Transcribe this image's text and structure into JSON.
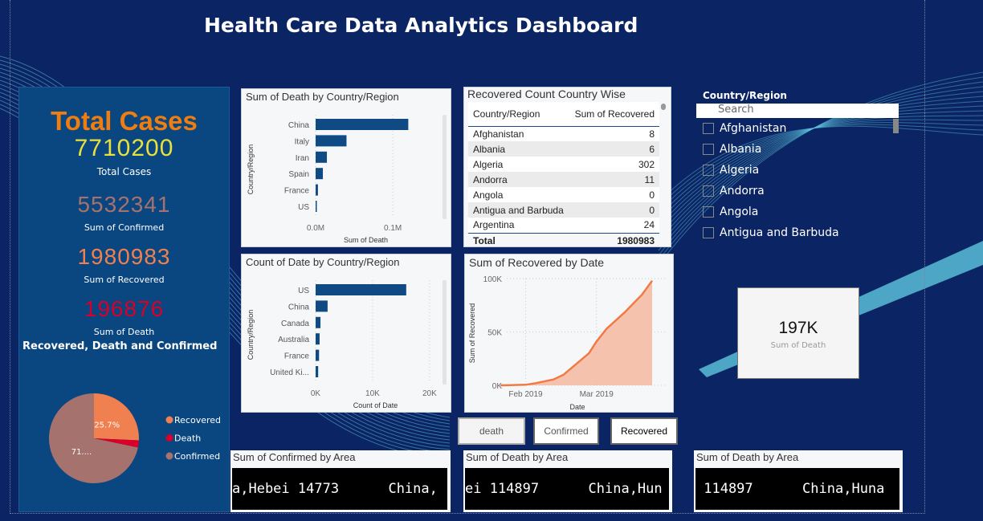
{
  "title": "Health Care Data Analytics Dashboard",
  "colors": {
    "background": "#0b2463",
    "kpi_panel": "#0a4680",
    "total_title": "#f07d10",
    "total_value": "#e8e03c",
    "confirmed": "#a6726e",
    "recovered": "#f08050",
    "death": "#d8002a",
    "bar": "#0f4a84"
  },
  "kpi": {
    "heading": "Total Cases",
    "total_value": "7710200",
    "total_label": "Total Cases",
    "confirmed_value": "5532341",
    "confirmed_label": "Sum of Confirmed",
    "recovered_value": "1980983",
    "recovered_label": "Sum of Recovered",
    "death_value": "196876",
    "death_label": "Sum of Death"
  },
  "pie": {
    "title": "Recovered, Death and Confirmed",
    "slices": [
      {
        "name": "Recovered",
        "percent": 25.7,
        "label": "25.7%",
        "color": "#f08050"
      },
      {
        "name": "Death",
        "percent": 2.6,
        "label": "",
        "color": "#d8002a"
      },
      {
        "name": "Confirmed",
        "percent": 71.7,
        "label": "71....",
        "color": "#a6726e"
      }
    ]
  },
  "chart_data": [
    {
      "type": "bar",
      "title": "Sum of Death by Country/Region",
      "xlabel": "Sum of Death",
      "ylabel": "Country/Region",
      "categories": [
        "China",
        "Italy",
        "Iran",
        "Spain",
        "France",
        "US"
      ],
      "values": [
        120000,
        40000,
        14600,
        9400,
        3000,
        1000
      ],
      "xlim": [
        0,
        130000
      ],
      "ticks": [
        {
          "v": 0,
          "label": "0.0M"
        },
        {
          "v": 100000,
          "label": "0.1M"
        }
      ]
    },
    {
      "type": "bar",
      "title": "Count of Date by Country/Region",
      "xlabel": "Count of Date",
      "ylabel": "Country/Region",
      "categories": [
        "US",
        "China",
        "Canada",
        "Australia",
        "France",
        "United Ki..."
      ],
      "values": [
        15900,
        2100,
        850,
        700,
        600,
        450
      ],
      "xlim": [
        0,
        21000
      ],
      "ticks": [
        {
          "v": 0,
          "label": "0K"
        },
        {
          "v": 10000,
          "label": "10K"
        },
        {
          "v": 20000,
          "label": "20K"
        }
      ]
    },
    {
      "type": "area",
      "title": "Sum of Recovered by Date",
      "xlabel": "Date",
      "ylabel": "Sum of Recovered",
      "x": [
        "2019-01-22",
        "2019-02-01",
        "2019-02-05",
        "2019-02-12",
        "2019-02-16",
        "2019-02-21",
        "2019-02-26",
        "2019-03-01",
        "2019-03-05",
        "2019-03-12",
        "2019-03-19",
        "2019-03-23"
      ],
      "y": [
        0,
        500,
        2000,
        5500,
        10000,
        20000,
        30000,
        41000,
        53000,
        68000,
        85000,
        98000
      ],
      "ylim": [
        0,
        100000
      ],
      "yticks": [
        {
          "v": 0,
          "label": "0K"
        },
        {
          "v": 50000,
          "label": "50K"
        },
        {
          "v": 100000,
          "label": "100K"
        }
      ],
      "xticks": [
        {
          "v": "2019-02-01",
          "label": "Feb 2019"
        },
        {
          "v": "2019-03-01",
          "label": "Mar 2019"
        }
      ]
    }
  ],
  "table": {
    "title": "Recovered Count Country Wise",
    "columns": [
      "Country/Region",
      "Sum of Recovered"
    ],
    "rows": [
      [
        "Afghanistan",
        "8"
      ],
      [
        "Albania",
        "6"
      ],
      [
        "Algeria",
        "302"
      ],
      [
        "Andorra",
        "11"
      ],
      [
        "Angola",
        "0"
      ],
      [
        "Antigua and Barbuda",
        "0"
      ],
      [
        "Argentina",
        "24"
      ]
    ],
    "total": [
      "Total",
      "1980983"
    ]
  },
  "slicer": {
    "title": "Country/Region",
    "placeholder": "Search",
    "items": [
      "Afghanistan",
      "Albania",
      "Algeria",
      "Andorra",
      "Angola",
      "Antigua and Barbuda"
    ]
  },
  "card": {
    "value": "197K",
    "label": "Sum of Death"
  },
  "buttons": [
    "death",
    "Confirmed",
    "Recovered"
  ],
  "areas": [
    {
      "title": "Sum of Confirmed by Area",
      "text": "a,Hebei 14773      China,"
    },
    {
      "title": "Sum of Death by Area",
      "text": "ei 114897      China,Hun"
    },
    {
      "title": "Sum of Death by Area",
      "text": " 114897      China,Huna"
    }
  ]
}
